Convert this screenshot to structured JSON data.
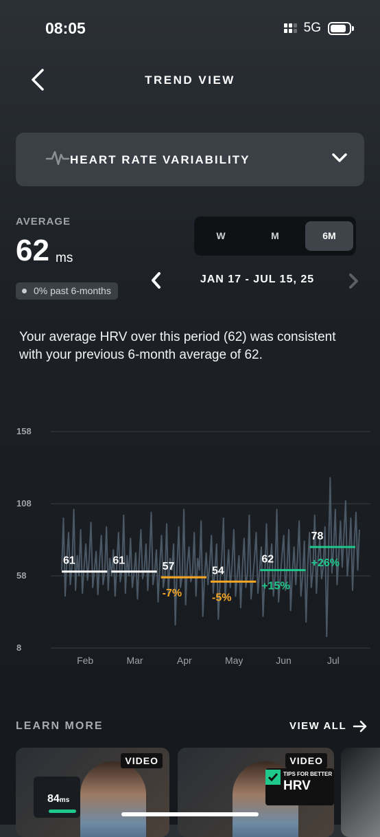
{
  "status": {
    "time": "08:05",
    "network": "5G"
  },
  "header": {
    "title": "TREND VIEW"
  },
  "metric_selector": {
    "label": "HEART RATE VARIABILITY"
  },
  "average": {
    "label": "AVERAGE",
    "value": "62",
    "unit": "ms",
    "change": "0% past 6-months"
  },
  "range_tabs": [
    {
      "label": "W"
    },
    {
      "label": "M"
    },
    {
      "label": "6M",
      "selected": true
    }
  ],
  "date_range": "JAN 17 - JUL 15, 25",
  "summary": "Your average HRV over this period (62) was consistent with your previous 6-month average of 62.",
  "colors": {
    "neutral": "#ffffff",
    "down": "#f5a623",
    "up": "#1fc98b",
    "line": "#4a5866"
  },
  "chart_data": {
    "type": "line",
    "ylim": [
      8,
      158
    ],
    "yticks": [
      "158",
      "108",
      "58",
      "8"
    ],
    "months": [
      "Feb",
      "Mar",
      "Apr",
      "May",
      "Jun",
      "Jul"
    ],
    "monthly": [
      {
        "avg": 61,
        "avg_label": "61",
        "change": "",
        "trend": "neutral"
      },
      {
        "avg": 61,
        "avg_label": "61",
        "change": "",
        "trend": "neutral"
      },
      {
        "avg": 57,
        "avg_label": "57",
        "change": "-7%",
        "trend": "down"
      },
      {
        "avg": 54,
        "avg_label": "54",
        "change": "-5%",
        "trend": "down"
      },
      {
        "avg": 62,
        "avg_label": "62",
        "change": "+15%",
        "trend": "up"
      },
      {
        "avg": 78,
        "avg_label": "78",
        "change": "+26%",
        "trend": "up"
      }
    ],
    "daily_values": [
      62,
      98,
      44,
      70,
      88,
      52,
      66,
      104,
      48,
      72,
      58,
      90,
      46,
      64,
      80,
      55,
      70,
      95,
      50,
      62,
      75,
      45,
      68,
      86,
      52,
      60,
      92,
      48,
      70,
      58,
      76,
      44,
      66,
      88,
      54,
      62,
      100,
      46,
      72,
      58,
      84,
      50,
      60,
      74,
      42,
      68,
      90,
      56,
      62,
      80,
      48,
      70,
      102,
      52,
      60,
      76,
      40,
      66,
      86,
      50,
      58,
      94,
      46,
      70,
      62,
      80,
      24,
      64,
      92,
      50,
      58,
      104,
      38,
      66,
      78,
      54,
      60,
      88,
      44,
      70,
      62,
      96,
      30,
      58,
      74,
      52,
      66,
      86,
      46,
      62,
      80,
      28,
      54,
      70,
      98,
      42,
      60,
      76,
      50,
      66,
      90,
      44,
      58,
      72,
      36,
      64,
      84,
      50,
      60,
      100,
      42,
      56,
      70,
      88,
      46,
      62,
      78,
      30,
      58,
      94,
      52,
      66,
      80,
      44,
      60,
      104,
      40,
      56,
      72,
      86,
      48,
      64,
      90,
      34,
      60,
      78,
      52,
      70,
      96,
      44,
      58,
      82,
      26,
      66,
      88,
      50,
      62,
      100,
      46,
      70,
      84,
      56,
      64,
      92,
      16,
      70,
      126,
      60,
      78,
      104,
      52,
      72,
      96,
      64,
      86,
      110,
      58,
      74,
      98,
      48,
      80,
      102,
      62,
      90
    ]
  },
  "learn_more": {
    "label": "LEARN MORE",
    "view_all": "VIEW ALL"
  },
  "cards": [
    {
      "tag": "VIDEO",
      "mini_value": "84",
      "mini_unit": "ms"
    },
    {
      "tag": "VIDEO",
      "tips_small": "TIPS FOR BETTER",
      "tips_big": "HRV"
    }
  ]
}
